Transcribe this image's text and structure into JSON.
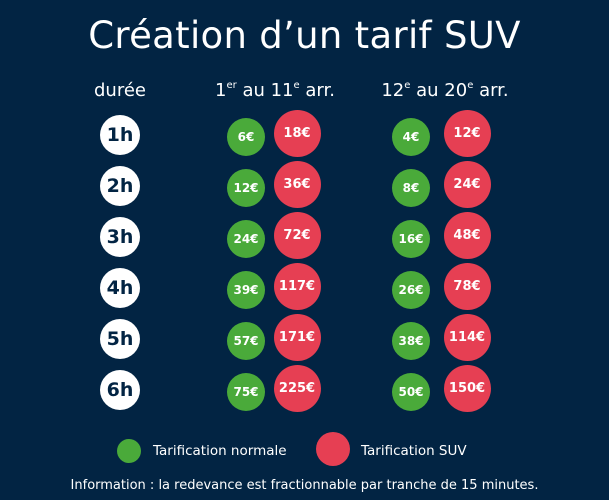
{
  "title": "Création d’un tarif SUV",
  "headers": {
    "duration": "durée",
    "zone1": {
      "a": "1",
      "a_sup": "er",
      "mid": " au 11",
      "b_sup": "e",
      "end": " arr."
    },
    "zone2": {
      "a": "12",
      "a_sup": "e",
      "mid": " au 20",
      "b_sup": "e",
      "end": " arr."
    }
  },
  "rows": [
    {
      "duration": "1h",
      "zone1_normal": "6€",
      "zone1_suv": "18€",
      "zone2_normal": "4€",
      "zone2_suv": "12€"
    },
    {
      "duration": "2h",
      "zone1_normal": "12€",
      "zone1_suv": "36€",
      "zone2_normal": "8€",
      "zone2_suv": "24€"
    },
    {
      "duration": "3h",
      "zone1_normal": "24€",
      "zone1_suv": "72€",
      "zone2_normal": "16€",
      "zone2_suv": "48€"
    },
    {
      "duration": "4h",
      "zone1_normal": "39€",
      "zone1_suv": "117€",
      "zone2_normal": "26€",
      "zone2_suv": "78€"
    },
    {
      "duration": "5h",
      "zone1_normal": "57€",
      "zone1_suv": "171€",
      "zone2_normal": "38€",
      "zone2_suv": "114€"
    },
    {
      "duration": "6h",
      "zone1_normal": "75€",
      "zone1_suv": "225€",
      "zone2_normal": "50€",
      "zone2_suv": "150€"
    }
  ],
  "legend": {
    "normal": "Tarification normale",
    "suv": "Tarification SUV"
  },
  "info": "Information : la redevance est fractionnable par tranche de 15 minutes.",
  "colors": {
    "background": "#022443",
    "normal": "#4aaa3a",
    "suv": "#e63f53",
    "duration_bg": "#ffffff"
  }
}
